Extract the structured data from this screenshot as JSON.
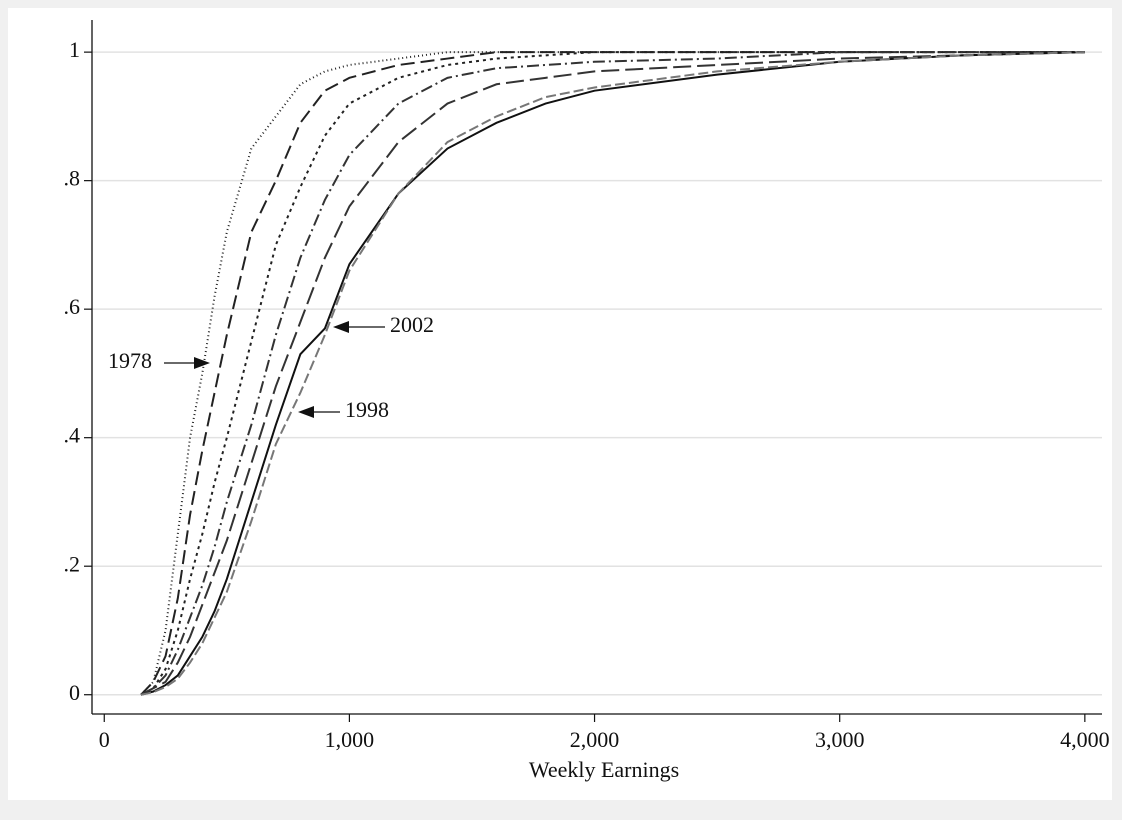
{
  "chart_data": {
    "type": "line",
    "x_label": "Weekly Earnings",
    "x": [
      150,
      200,
      250,
      300,
      350,
      400,
      450,
      500,
      600,
      700,
      800,
      900,
      1000,
      1200,
      1400,
      1600,
      1800,
      2000,
      2500,
      3000,
      3500,
      4000
    ],
    "series": [
      {
        "color": "#222222",
        "dash": "1 3",
        "values": [
          0,
          0.02,
          0.1,
          0.25,
          0.4,
          0.5,
          0.62,
          0.72,
          0.85,
          0.9,
          0.95,
          0.97,
          0.98,
          0.99,
          1,
          1,
          1,
          1,
          1,
          1,
          1,
          1
        ]
      },
      {
        "color": "#222222",
        "dash": "14 6",
        "values": [
          0,
          0.02,
          0.06,
          0.15,
          0.28,
          0.38,
          0.47,
          0.56,
          0.72,
          0.8,
          0.89,
          0.94,
          0.96,
          0.98,
          0.99,
          1,
          1,
          1,
          1,
          1,
          1,
          1
        ]
      },
      {
        "color": "#222222",
        "dash": "3 4",
        "values": [
          0,
          0.01,
          0.04,
          0.1,
          0.18,
          0.25,
          0.33,
          0.4,
          0.55,
          0.7,
          0.79,
          0.87,
          0.92,
          0.96,
          0.98,
          0.99,
          0.995,
          1,
          1,
          1,
          1,
          1
        ]
      },
      {
        "color": "#333333",
        "dash": "12 4 2 4",
        "values": [
          0,
          0.01,
          0.03,
          0.07,
          0.12,
          0.17,
          0.23,
          0.3,
          0.42,
          0.56,
          0.68,
          0.77,
          0.84,
          0.92,
          0.96,
          0.975,
          0.98,
          0.985,
          0.99,
          1,
          1,
          1
        ]
      },
      {
        "color": "#333333",
        "dash": "18 6",
        "values": [
          0,
          0.01,
          0.02,
          0.05,
          0.09,
          0.14,
          0.19,
          0.24,
          0.36,
          0.48,
          0.58,
          0.68,
          0.76,
          0.86,
          0.92,
          0.95,
          0.96,
          0.97,
          0.98,
          0.99,
          0.995,
          1
        ]
      },
      {
        "color": "#111111",
        "dash": "none",
        "values": [
          0,
          0.005,
          0.015,
          0.03,
          0.06,
          0.09,
          0.13,
          0.18,
          0.3,
          0.42,
          0.53,
          0.57,
          0.67,
          0.78,
          0.85,
          0.89,
          0.92,
          0.94,
          0.965,
          0.985,
          0.995,
          1
        ]
      },
      {
        "color": "#777777",
        "dash": "10 4",
        "values": [
          0,
          0.004,
          0.012,
          0.025,
          0.05,
          0.08,
          0.12,
          0.16,
          0.27,
          0.39,
          0.47,
          0.56,
          0.66,
          0.78,
          0.86,
          0.9,
          0.93,
          0.945,
          0.97,
          0.985,
          0.995,
          1
        ]
      }
    ],
    "annotations": [
      "1978",
      "2002",
      "1998"
    ],
    "xlim": [
      -50,
      4070
    ],
    "ylim": [
      -0.03,
      1.05
    ],
    "xticks": [
      0,
      {
        "value": 1000,
        "label": "1,000"
      },
      {
        "value": 2000,
        "label": "2,000"
      },
      {
        "value": 3000,
        "label": "3,000"
      },
      {
        "value": 4000,
        "label": "4,000"
      }
    ],
    "yticks": [
      0,
      {
        "value": 0.2,
        "label": ".2"
      },
      {
        "value": 0.4,
        "label": ".4"
      },
      {
        "value": 0.6,
        "label": ".6"
      },
      {
        "value": 0.8,
        "label": ".8"
      },
      1
    ],
    "grid": true
  }
}
